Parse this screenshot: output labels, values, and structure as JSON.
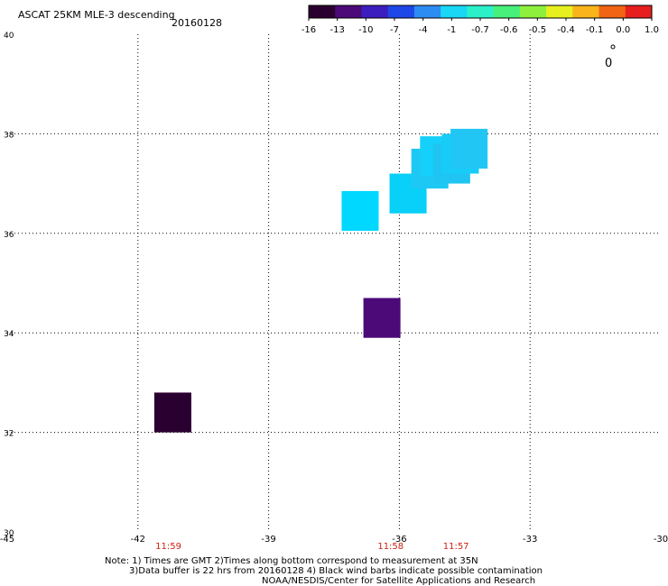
{
  "header": {
    "title": "ASCAT 25KM MLE-3 descending",
    "date": "20160128"
  },
  "colorbar": {
    "colors": [
      "#2a0030",
      "#4b0a78",
      "#3c1dbe",
      "#1f46e6",
      "#2d8cf2",
      "#19d7f5",
      "#2cf0c8",
      "#46f07a",
      "#8ef03c",
      "#e6f01e",
      "#f8b41a",
      "#f06414",
      "#e61e1e"
    ],
    "labels": [
      "-16",
      "-13",
      "-10",
      "-7",
      "-4",
      "-1",
      "-0.7",
      "-0.6",
      "-0.5",
      "-0.4",
      "-0.1",
      "0.0",
      "1.0"
    ]
  },
  "map": {
    "lon_min": -45,
    "lon_max": -30,
    "lat_min": 30,
    "lat_max": 40,
    "lon_ticks": [
      {
        "value": -45,
        "label": "-45"
      },
      {
        "value": -42,
        "label": "-42"
      },
      {
        "value": -39,
        "label": "-39"
      },
      {
        "value": -36,
        "label": "-36"
      },
      {
        "value": -33,
        "label": "-33"
      },
      {
        "value": -30,
        "label": "-30"
      }
    ],
    "lat_ticks": [
      {
        "value": 30,
        "label": "30"
      },
      {
        "value": 32,
        "label": "32"
      },
      {
        "value": 34,
        "label": "34"
      },
      {
        "value": 36,
        "label": "36"
      },
      {
        "value": 38,
        "label": "38"
      },
      {
        "value": 40,
        "label": "40"
      }
    ],
    "cells": [
      {
        "lon": -41.2,
        "lat": 32.4,
        "color": "#2a0030"
      },
      {
        "lon": -36.4,
        "lat": 34.3,
        "color": "#4b0a78"
      },
      {
        "lon": -36.9,
        "lat": 36.45,
        "color": "#00d8ff"
      },
      {
        "lon": -35.8,
        "lat": 36.8,
        "color": "#08d0f8"
      },
      {
        "lon": -35.3,
        "lat": 37.3,
        "color": "#1ec8f5"
      },
      {
        "lon": -35.1,
        "lat": 37.55,
        "color": "#14d0fa"
      },
      {
        "lon": -34.8,
        "lat": 37.4,
        "color": "#20c4f3"
      },
      {
        "lon": -34.6,
        "lat": 37.6,
        "color": "#18ccf8"
      },
      {
        "lon": -34.4,
        "lat": 37.7,
        "color": "#22c6f4"
      }
    ],
    "time_labels": [
      {
        "lon": -41.3,
        "text": "11:59"
      },
      {
        "lon": -36.2,
        "text": "11:58"
      },
      {
        "lon": -34.7,
        "text": "11:57"
      }
    ],
    "time_color": "#d02010",
    "wind_label": "0"
  },
  "notes": [
    "Note: 1) Times are GMT 2)Times along bottom correspond to measurement at 35N",
    "3)Data buffer is 22 hrs from 20160128 4) Black wind barbs indicate possible contamination",
    "NOAA/NESDIS/Center for Satellite Applications and Research"
  ]
}
